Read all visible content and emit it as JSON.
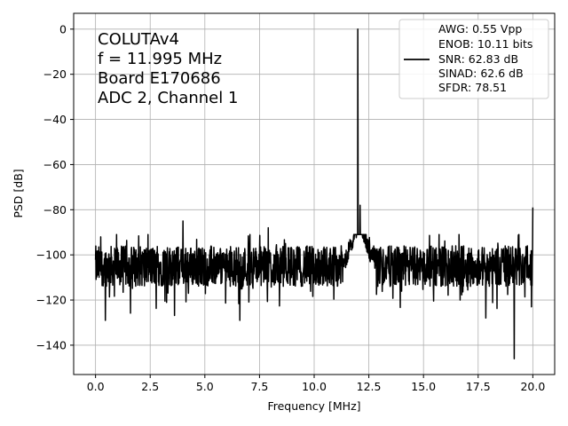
{
  "chart_data": {
    "type": "line",
    "xlabel": "Frequency [MHz]",
    "ylabel": "PSD [dB]",
    "xlim": [
      -1.0,
      21.0
    ],
    "ylim": [
      -153,
      7
    ],
    "xticks": [
      0.0,
      2.5,
      5.0,
      7.5,
      10.0,
      12.5,
      15.0,
      17.5,
      20.0
    ],
    "xtick_labels": [
      "0.0",
      "2.5",
      "5.0",
      "7.5",
      "10.0",
      "12.5",
      "15.0",
      "17.5",
      "20.0"
    ],
    "yticks": [
      0,
      -20,
      -40,
      -60,
      -80,
      -100,
      -120,
      -140
    ],
    "ytick_labels": [
      "0",
      "−20",
      "−40",
      "−60",
      "−80",
      "−100",
      "−120",
      "−140"
    ],
    "grid": true,
    "annotation_lines": [
      "COLUTAv4",
      "f = 11.995 MHz",
      "Board E170686",
      "ADC 2, Channel 1"
    ],
    "legend_location": "upper right",
    "legend_lines": [
      "AWG: 0.55 Vpp",
      "ENOB: 10.11 bits",
      "SNR: 62.83 dB",
      "SINAD: 62.6 dB",
      "SFDR: 78.51"
    ],
    "series": [
      {
        "color": "#000000",
        "noise_floor_db": -105,
        "noise_span_db": [
          -122,
          -93
        ],
        "x_range": [
          0.0,
          20.0
        ],
        "peaks": [
          {
            "x": 11.995,
            "y": 0
          },
          {
            "x": 12.1,
            "y": -78
          },
          {
            "x": 4.0,
            "y": -85
          },
          {
            "x": 7.9,
            "y": -88
          },
          {
            "x": 20.0,
            "y": -79
          }
        ],
        "dips": [
          {
            "x": 19.15,
            "y": -146
          },
          {
            "x": 6.6,
            "y": -129
          },
          {
            "x": 0.45,
            "y": -129
          },
          {
            "x": 17.85,
            "y": -128
          }
        ]
      }
    ]
  }
}
